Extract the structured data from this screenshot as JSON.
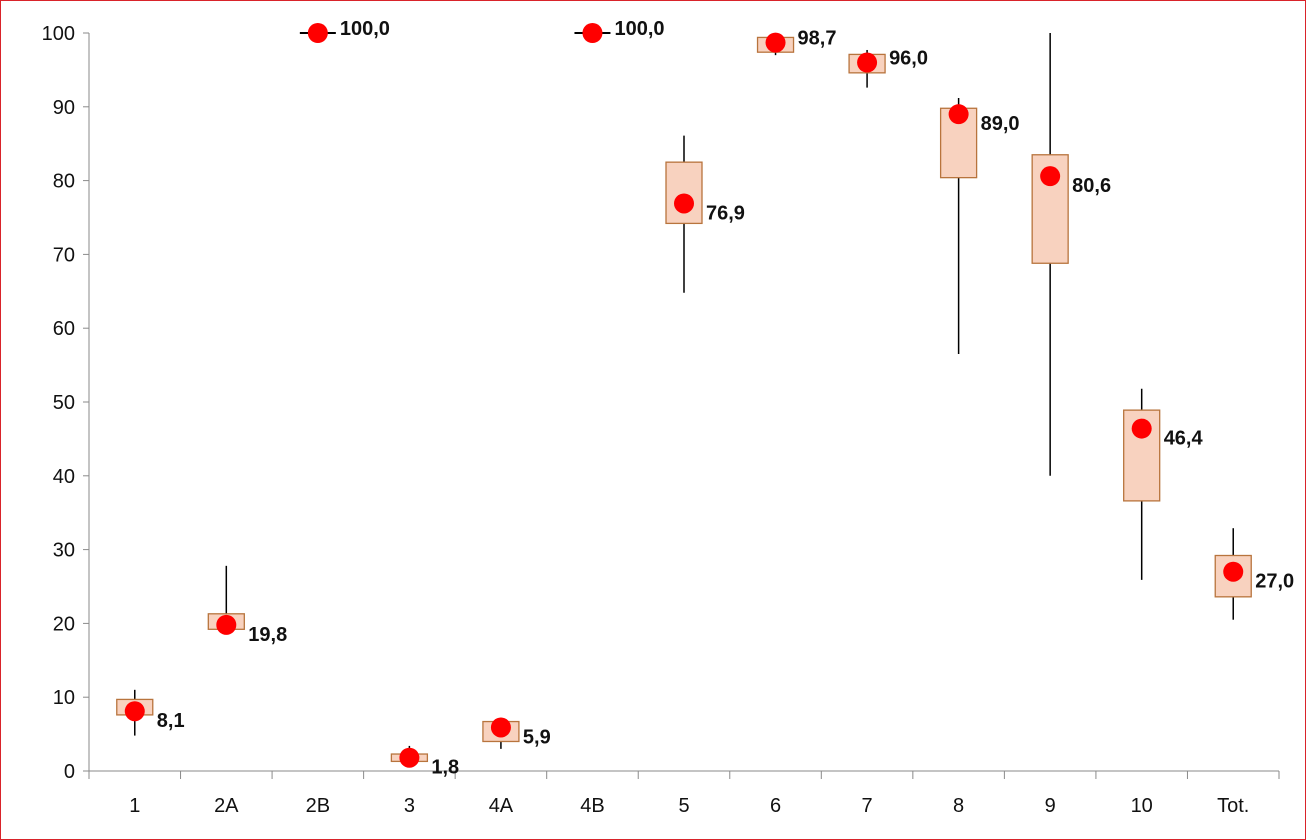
{
  "chart_data": {
    "type": "box",
    "title": "",
    "xlabel": "",
    "ylabel": "",
    "ylim": [
      0,
      100
    ],
    "yticks": [
      0,
      10,
      20,
      30,
      40,
      50,
      60,
      70,
      80,
      90,
      100
    ],
    "grid": false,
    "legend": "none",
    "categories": [
      "1",
      "2A",
      "2B",
      "3",
      "4A",
      "4B",
      "5",
      "6",
      "7",
      "8",
      "9",
      "10",
      "Tot."
    ],
    "series": [
      {
        "value": [
          8.1,
          19.8,
          100.0,
          1.8,
          5.9,
          100.0,
          76.9,
          98.7,
          96.0,
          89.0,
          80.6,
          46.4,
          27.0
        ],
        "low": [
          4.8,
          19.0,
          100.0,
          1.0,
          3.0,
          100.0,
          64.8,
          97.0,
          92.6,
          56.5,
          40.0,
          25.9,
          20.5
        ],
        "q1": [
          7.6,
          19.2,
          100.0,
          1.3,
          4.0,
          100.0,
          74.2,
          97.4,
          94.6,
          80.4,
          68.8,
          36.6,
          23.6
        ],
        "q3": [
          9.7,
          21.3,
          100.0,
          2.3,
          6.7,
          100.0,
          82.5,
          99.4,
          97.1,
          89.8,
          83.5,
          48.9,
          29.2
        ],
        "high": [
          11.0,
          27.8,
          100.0,
          3.4,
          7.2,
          100.0,
          86.1,
          100.0,
          97.7,
          91.2,
          100.0,
          51.8,
          32.9
        ],
        "labels": [
          "8,1",
          "19,8",
          "100,0",
          "1,8",
          "5,9",
          "100,0",
          "76,9",
          "98,7",
          "96,0",
          "89,0",
          "80,6",
          "46,4",
          "27,0"
        ]
      }
    ],
    "colors": {
      "box_fill": "#f8d2bf",
      "box_stroke": "#b8743d",
      "whisker": "#000000",
      "marker": "#ff0000",
      "axis": "#8a8a8a",
      "frame": "#d9232a",
      "text": "#111111"
    }
  }
}
